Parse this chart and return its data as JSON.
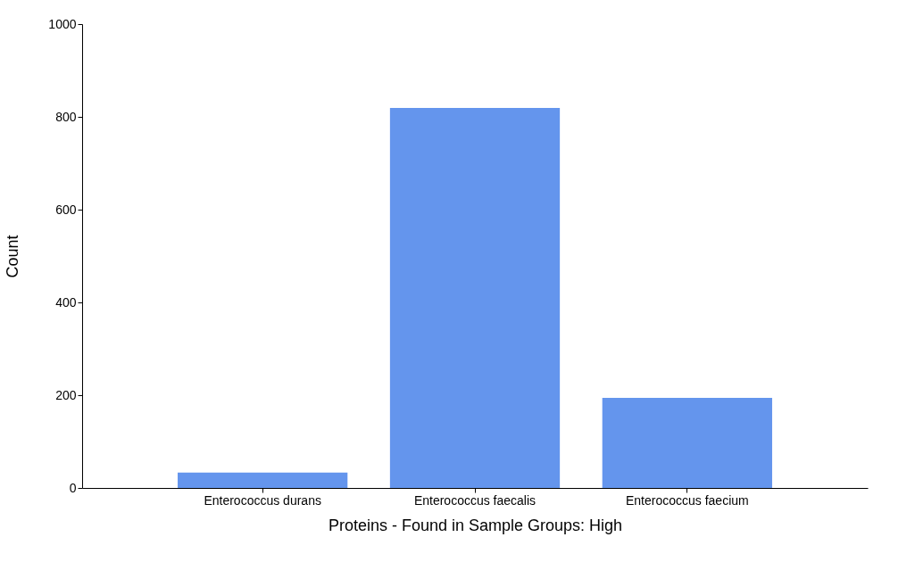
{
  "chart_data": {
    "type": "bar",
    "xlabel": "Proteins - Found in Sample Groups: High",
    "ylabel": "Count",
    "categories": [
      "Enterococcus durans",
      "Enterococcus faecalis",
      "Enterococcus faecium"
    ],
    "values": [
      33,
      819,
      194
    ],
    "color": "#6495ed",
    "ylim": [
      0,
      1000
    ],
    "yticks": [
      0,
      200,
      400,
      600,
      800,
      1000
    ],
    "grid": false
  }
}
